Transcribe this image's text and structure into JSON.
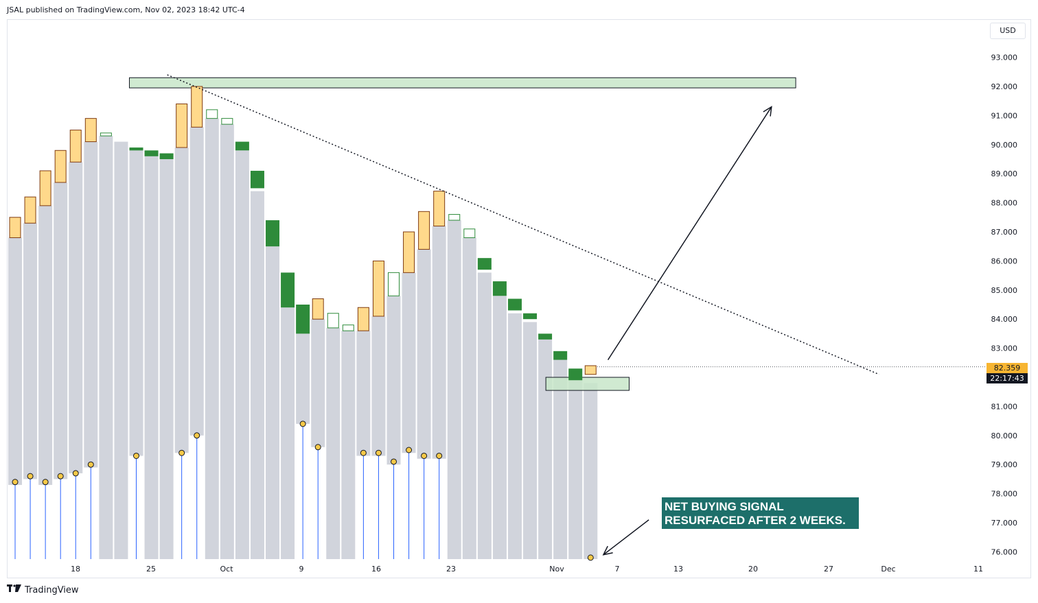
{
  "header": {
    "publish_info": "JSAL published on TradingView.com, Nov 02, 2023 18:42 UTC-4"
  },
  "currency": "USD",
  "price_badge": "82.359",
  "time_badge": "22:17:43",
  "annotation": {
    "line1": "NET BUYING SIGNAL",
    "line2": "RESURFACED AFTER 2 WEEKS."
  },
  "footer": {
    "brand": "TradingView",
    "logo_icon": "tradingview-logo-icon"
  },
  "colors": {
    "volume_bar": "#d1d4dc",
    "bull_bar": "#ffd98b",
    "bull_border": "#7f3b10",
    "green_bar": "#2e8b3a",
    "zone_fill": "#c8e6c9",
    "annotation_bg": "#1d6f6a",
    "price_tag": "#f7b531",
    "marker": "#f7c948",
    "stem": "#2962ff"
  },
  "chart_data": {
    "type": "candlestick-overlay",
    "y_ticks": [
      "93.000",
      "92.000",
      "91.000",
      "90.000",
      "89.000",
      "88.000",
      "87.000",
      "86.000",
      "85.000",
      "84.000",
      "83.000",
      "82.000",
      "81.000",
      "80.000",
      "79.000",
      "78.000",
      "77.000",
      "76.000"
    ],
    "ylim": [
      75.7,
      93.6
    ],
    "x_ticks": [
      "18",
      "25",
      "Oct",
      "9",
      "16",
      "23",
      "Nov",
      "7",
      "13",
      "20",
      "27",
      "Dec",
      "11"
    ],
    "last_price": 82.359,
    "bars": [
      {
        "bg_top": 86.8,
        "bg_bot": 78.3,
        "kind": "bull",
        "o": 86.8,
        "c": 87.5,
        "marker": 78.4
      },
      {
        "bg_top": 87.3,
        "bg_bot": 78.5,
        "kind": "bull",
        "o": 87.3,
        "c": 88.2,
        "marker": 78.6
      },
      {
        "bg_top": 87.9,
        "bg_bot": 78.3,
        "kind": "bull",
        "o": 87.9,
        "c": 89.1,
        "marker": 78.4
      },
      {
        "bg_top": 88.7,
        "bg_bot": 78.5,
        "kind": "bull",
        "o": 88.7,
        "c": 89.8,
        "marker": 78.6
      },
      {
        "bg_top": 89.4,
        "bg_bot": 78.7,
        "kind": "bull",
        "o": 89.4,
        "c": 90.5,
        "marker": 78.7
      },
      {
        "bg_top": 90.1,
        "bg_bot": 78.9,
        "kind": "bull",
        "o": 90.1,
        "c": 90.9,
        "marker": 79.0
      },
      {
        "bg_top": 90.3,
        "bg_bot": 75.7,
        "kind": "hollow",
        "o": 90.3,
        "c": 90.4,
        "marker": null
      },
      {
        "bg_top": 90.1,
        "bg_bot": 75.7,
        "kind": "none",
        "o": null,
        "c": null,
        "marker": null
      },
      {
        "bg_top": 89.9,
        "bg_bot": 79.3,
        "kind": "green",
        "o": 89.9,
        "c": 89.8,
        "marker": 79.3
      },
      {
        "bg_top": 89.7,
        "bg_bot": 75.7,
        "kind": "green",
        "o": 89.8,
        "c": 89.6,
        "marker": null
      },
      {
        "bg_top": 89.5,
        "bg_bot": 75.7,
        "kind": "green",
        "o": 89.7,
        "c": 89.5,
        "marker": null
      },
      {
        "bg_top": 89.9,
        "bg_bot": 79.4,
        "kind": "bull",
        "o": 89.9,
        "c": 91.4,
        "marker": 79.4
      },
      {
        "bg_top": 90.6,
        "bg_bot": 80.0,
        "kind": "bull",
        "o": 90.6,
        "c": 92.0,
        "marker": 80.0
      },
      {
        "bg_top": 90.9,
        "bg_bot": 75.7,
        "kind": "hollow",
        "o": 90.9,
        "c": 91.2,
        "marker": null
      },
      {
        "bg_top": 90.7,
        "bg_bot": 75.7,
        "kind": "hollow",
        "o": 90.7,
        "c": 90.9,
        "marker": null
      },
      {
        "bg_top": 89.8,
        "bg_bot": 75.7,
        "kind": "green",
        "o": 90.1,
        "c": 89.8,
        "marker": null
      },
      {
        "bg_top": 88.4,
        "bg_bot": 75.7,
        "kind": "green",
        "o": 89.1,
        "c": 88.5,
        "marker": null
      },
      {
        "bg_top": 86.5,
        "bg_bot": 75.7,
        "kind": "green",
        "o": 87.4,
        "c": 86.5,
        "marker": null
      },
      {
        "bg_top": 84.4,
        "bg_bot": 75.7,
        "kind": "green",
        "o": 85.6,
        "c": 84.4,
        "marker": null
      },
      {
        "bg_top": 83.5,
        "bg_bot": 80.4,
        "kind": "green",
        "o": 84.5,
        "c": 83.5,
        "marker": 80.4
      },
      {
        "bg_top": 84.0,
        "bg_bot": 79.6,
        "kind": "bull",
        "o": 84.0,
        "c": 84.7,
        "marker": 79.6
      },
      {
        "bg_top": 83.7,
        "bg_bot": 75.7,
        "kind": "hollow",
        "o": 83.7,
        "c": 84.2,
        "marker": null
      },
      {
        "bg_top": 83.6,
        "bg_bot": 75.7,
        "kind": "hollow",
        "o": 83.6,
        "c": 83.8,
        "marker": null
      },
      {
        "bg_top": 83.6,
        "bg_bot": 79.3,
        "kind": "bull",
        "o": 83.6,
        "c": 84.4,
        "marker": 79.4
      },
      {
        "bg_top": 84.1,
        "bg_bot": 79.3,
        "kind": "bull",
        "o": 84.1,
        "c": 86.0,
        "marker": 79.4
      },
      {
        "bg_top": 84.8,
        "bg_bot": 79.0,
        "kind": "hollow",
        "o": 84.8,
        "c": 85.6,
        "marker": 79.1
      },
      {
        "bg_top": 85.6,
        "bg_bot": 79.4,
        "kind": "bull",
        "o": 85.6,
        "c": 87.0,
        "marker": 79.5
      },
      {
        "bg_top": 86.4,
        "bg_bot": 79.2,
        "kind": "bull",
        "o": 86.4,
        "c": 87.7,
        "marker": 79.3
      },
      {
        "bg_top": 87.2,
        "bg_bot": 79.2,
        "kind": "bull",
        "o": 87.2,
        "c": 88.4,
        "marker": 79.3
      },
      {
        "bg_top": 87.4,
        "bg_bot": 75.7,
        "kind": "hollow",
        "o": 87.4,
        "c": 87.6,
        "marker": null
      },
      {
        "bg_top": 86.8,
        "bg_bot": 75.7,
        "kind": "hollow",
        "o": 86.8,
        "c": 87.1,
        "marker": null
      },
      {
        "bg_top": 85.6,
        "bg_bot": 75.7,
        "kind": "green",
        "o": 86.1,
        "c": 85.7,
        "marker": null
      },
      {
        "bg_top": 84.8,
        "bg_bot": 75.7,
        "kind": "green",
        "o": 85.3,
        "c": 84.8,
        "marker": null
      },
      {
        "bg_top": 84.2,
        "bg_bot": 75.7,
        "kind": "green",
        "o": 84.7,
        "c": 84.3,
        "marker": null
      },
      {
        "bg_top": 83.9,
        "bg_bot": 75.7,
        "kind": "green",
        "o": 84.2,
        "c": 84.0,
        "marker": null
      },
      {
        "bg_top": 83.3,
        "bg_bot": 75.7,
        "kind": "green",
        "o": 83.5,
        "c": 83.3,
        "marker": null
      },
      {
        "bg_top": 82.6,
        "bg_bot": 75.7,
        "kind": "green",
        "o": 82.9,
        "c": 82.6,
        "marker": null
      },
      {
        "bg_top": 82.0,
        "bg_bot": 75.7,
        "kind": "green",
        "o": 82.3,
        "c": 81.9,
        "marker": null
      },
      {
        "bg_top": 81.8,
        "bg_bot": 75.7,
        "kind": "bull",
        "o": 82.1,
        "c": 82.4,
        "marker": 75.8
      }
    ],
    "zones": [
      {
        "y_top": 92.3,
        "y_bot": 91.95,
        "x_start_bar": 8,
        "x_end_bar": 52
      },
      {
        "y_top": 82.0,
        "y_bot": 81.55,
        "x_start_bar": 35.5,
        "x_end_bar": 41
      }
    ],
    "trendline": {
      "from_bar": 10.5,
      "from_y": 92.4,
      "to_bar": 57.5,
      "to_y": 82.1
    },
    "arrow_up": {
      "from_bar": 39.6,
      "from_y": 82.6,
      "to_bar": 50.4,
      "to_y": 91.3
    },
    "arrow_down": {
      "from_bar": 42.3,
      "from_y": 77.1,
      "to_bar": 39.3,
      "to_y": 75.9
    }
  }
}
